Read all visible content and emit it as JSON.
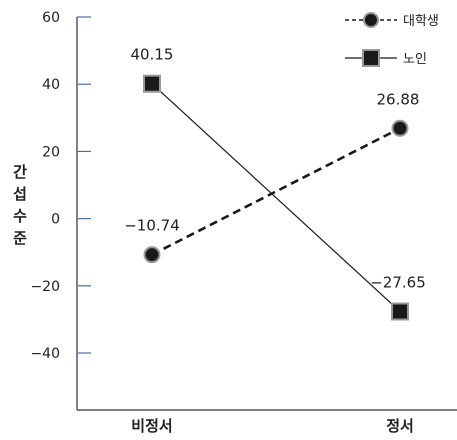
{
  "chart_data": {
    "type": "line",
    "title": "",
    "xlabel": "",
    "ylabel": "간섭수준",
    "categories": [
      "비정서",
      "정서"
    ],
    "ylim": [
      -60,
      60
    ],
    "yticks": [
      60,
      40,
      20,
      0,
      -20,
      -40
    ],
    "legend_position": "top-right",
    "series": [
      {
        "name": "대학생",
        "values": [
          -10.74,
          26.88
        ],
        "labels": [
          "-10.74",
          "26.88"
        ],
        "line_style": "dashed",
        "marker": "circle",
        "color": "#1a1a1a"
      },
      {
        "name": "노인",
        "values": [
          40.15,
          -27.65
        ],
        "labels": [
          "40.15",
          "-27.65"
        ],
        "line_style": "solid",
        "marker": "square",
        "color": "#1a1a1a"
      }
    ]
  }
}
